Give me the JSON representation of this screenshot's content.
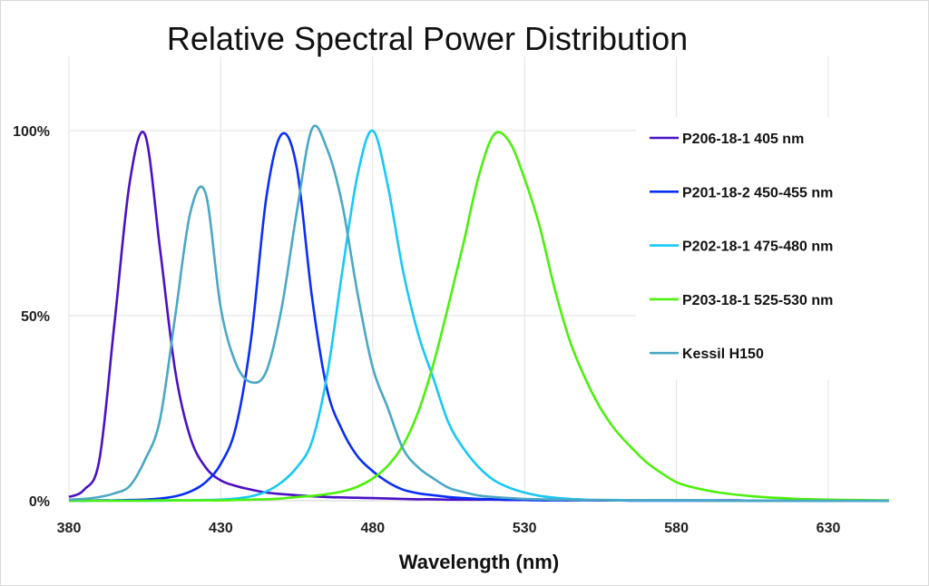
{
  "chart_data": {
    "type": "line",
    "title": "Relative Spectral Power Distribution",
    "xlabel": "Wavelength (nm)",
    "ylabel": "",
    "xlim": [
      380,
      650
    ],
    "ylim": [
      0,
      120
    ],
    "x_ticks": [
      380,
      430,
      480,
      530,
      580,
      630
    ],
    "y_ticks": [
      {
        "value": 0,
        "label": "0%"
      },
      {
        "value": 50,
        "label": "50%"
      },
      {
        "value": 100,
        "label": "100%"
      }
    ],
    "grid": true,
    "legend_position": "right",
    "x": [
      380,
      385,
      390,
      395,
      400,
      405,
      410,
      415,
      420,
      425,
      430,
      435,
      440,
      445,
      450,
      455,
      460,
      465,
      470,
      475,
      480,
      485,
      490,
      495,
      500,
      505,
      510,
      515,
      520,
      525,
      530,
      535,
      540,
      545,
      550,
      555,
      560,
      565,
      570,
      575,
      580,
      585,
      590,
      595,
      600,
      605,
      610,
      615,
      620,
      625,
      630,
      635,
      640,
      645,
      650
    ],
    "series": [
      {
        "name": "P206-18-1 405 nm",
        "color": "#4B10C4",
        "values": [
          1,
          3,
          11,
          48,
          86,
          99,
          68,
          35,
          17,
          9,
          5.5,
          4,
          3,
          2.2,
          1.8,
          1.5,
          1.2,
          1,
          0.9,
          0.8,
          0.7,
          0.6,
          0.5,
          0.4,
          0.4,
          0.3,
          0.3,
          0.3,
          0.3,
          0.2,
          0.2,
          0.2,
          0.2,
          0.2,
          0.2,
          0.1,
          0.1,
          0.1,
          0.1,
          0.1,
          0.1,
          0.1,
          0.1,
          0.1,
          0.1,
          0,
          0,
          0,
          0,
          0,
          0,
          0,
          0,
          0,
          0
        ]
      },
      {
        "name": "P201-18-2 450-455 nm",
        "color": "#0A2EF5",
        "values": [
          0,
          0,
          0.1,
          0.1,
          0.2,
          0.3,
          0.6,
          1.2,
          2.5,
          5,
          10,
          20,
          44,
          82,
          99,
          90,
          55,
          30,
          19,
          12,
          8,
          5,
          3,
          2,
          1.5,
          1,
          0.7,
          0.5,
          0.4,
          0.3,
          0.2,
          0.1,
          0.1,
          0.1,
          0.1,
          0.1,
          0.1,
          0,
          0,
          0,
          0,
          0,
          0,
          0,
          0,
          0,
          0,
          0,
          0,
          0,
          0,
          0,
          0,
          0,
          0
        ]
      },
      {
        "name": "P202-18-1 475-480 nm",
        "color": "#18C8F5",
        "values": [
          0,
          0,
          0,
          0,
          0,
          0,
          0,
          0.1,
          0.1,
          0.2,
          0.3,
          0.6,
          1.2,
          2.5,
          5,
          9,
          16,
          34,
          62,
          88,
          100,
          85,
          62,
          45,
          33,
          21,
          14,
          9,
          5.5,
          3.5,
          2.2,
          1.3,
          0.8,
          0.5,
          0.3,
          0.2,
          0.2,
          0.1,
          0.1,
          0.1,
          0.1,
          0.1,
          0.1,
          0,
          0,
          0,
          0,
          0,
          0,
          0,
          0,
          0,
          0,
          0,
          0
        ]
      },
      {
        "name": "P203-18-1 525-530 nm",
        "color": "#4CF00C",
        "values": [
          0,
          0,
          0,
          0,
          0,
          0,
          0.1,
          0.1,
          0.1,
          0.1,
          0.1,
          0.2,
          0.3,
          0.4,
          0.6,
          1,
          1.3,
          1.8,
          2.5,
          3.8,
          6,
          9.5,
          15,
          24,
          37,
          53,
          70,
          88,
          99,
          97,
          87,
          74,
          57,
          43,
          33,
          25,
          19,
          14.5,
          10.5,
          7.5,
          5,
          3.7,
          2.8,
          2.1,
          1.6,
          1.2,
          0.9,
          0.7,
          0.5,
          0.4,
          0.3,
          0.25,
          0.2,
          0.15,
          0.1
        ]
      },
      {
        "name": "Kessil H150",
        "color": "#4AA8C4",
        "values": [
          0.3,
          0.5,
          1,
          2,
          4,
          11,
          22,
          50,
          78,
          83,
          52,
          37,
          32,
          35,
          52,
          78,
          100.5,
          95,
          80,
          56,
          36,
          25,
          14,
          9,
          6,
          3.5,
          2.3,
          1.4,
          1,
          0.7,
          0.5,
          0.4,
          0.3,
          0.3,
          0.2,
          0.2,
          0.1,
          0.1,
          0.1,
          0.1,
          0.1,
          0.1,
          0,
          0,
          0,
          0,
          0,
          0,
          0,
          0,
          0,
          0,
          0,
          0,
          0
        ]
      }
    ]
  }
}
